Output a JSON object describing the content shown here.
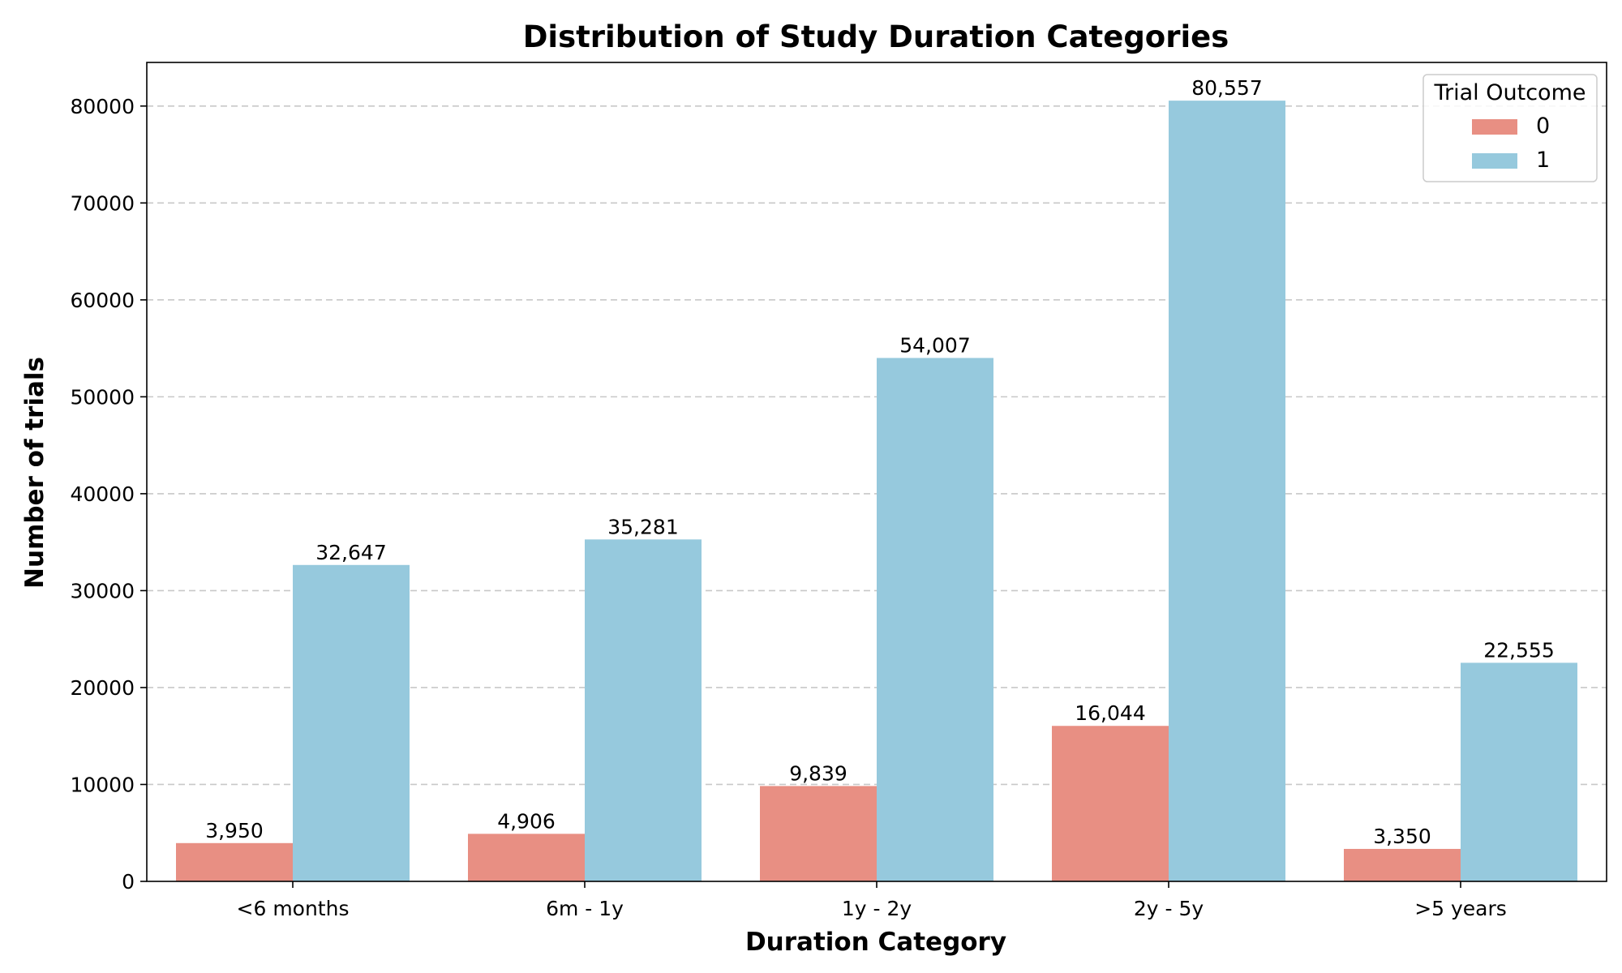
{
  "chart_data": {
    "type": "bar",
    "title": "Distribution of Study Duration Categories",
    "xlabel": "Duration Category",
    "ylabel": "Number of trials",
    "categories": [
      "<6 months",
      "6m - 1y",
      "1y - 2y",
      "2y - 5y",
      ">5 years"
    ],
    "series": [
      {
        "name": "0",
        "color": "#e88f83",
        "values": [
          3950,
          4906,
          9839,
          16044,
          3350
        ],
        "labels": [
          "3,950",
          "4,906",
          "9,839",
          "16,044",
          "3,350"
        ]
      },
      {
        "name": "1",
        "color": "#96c9dd",
        "values": [
          32647,
          35281,
          54007,
          80557,
          22555
        ],
        "labels": [
          "32,647",
          "35,281",
          "54,007",
          "80,557",
          "22,555"
        ]
      }
    ],
    "ylim": [
      0,
      84500
    ],
    "yticks": [
      0,
      10000,
      20000,
      30000,
      40000,
      50000,
      60000,
      70000,
      80000
    ],
    "ytick_labels": [
      "0",
      "10000",
      "20000",
      "30000",
      "40000",
      "50000",
      "60000",
      "70000",
      "80000"
    ],
    "grid": "y-dashed",
    "legend": {
      "title": "Trial Outcome",
      "placement": "top-right"
    }
  }
}
